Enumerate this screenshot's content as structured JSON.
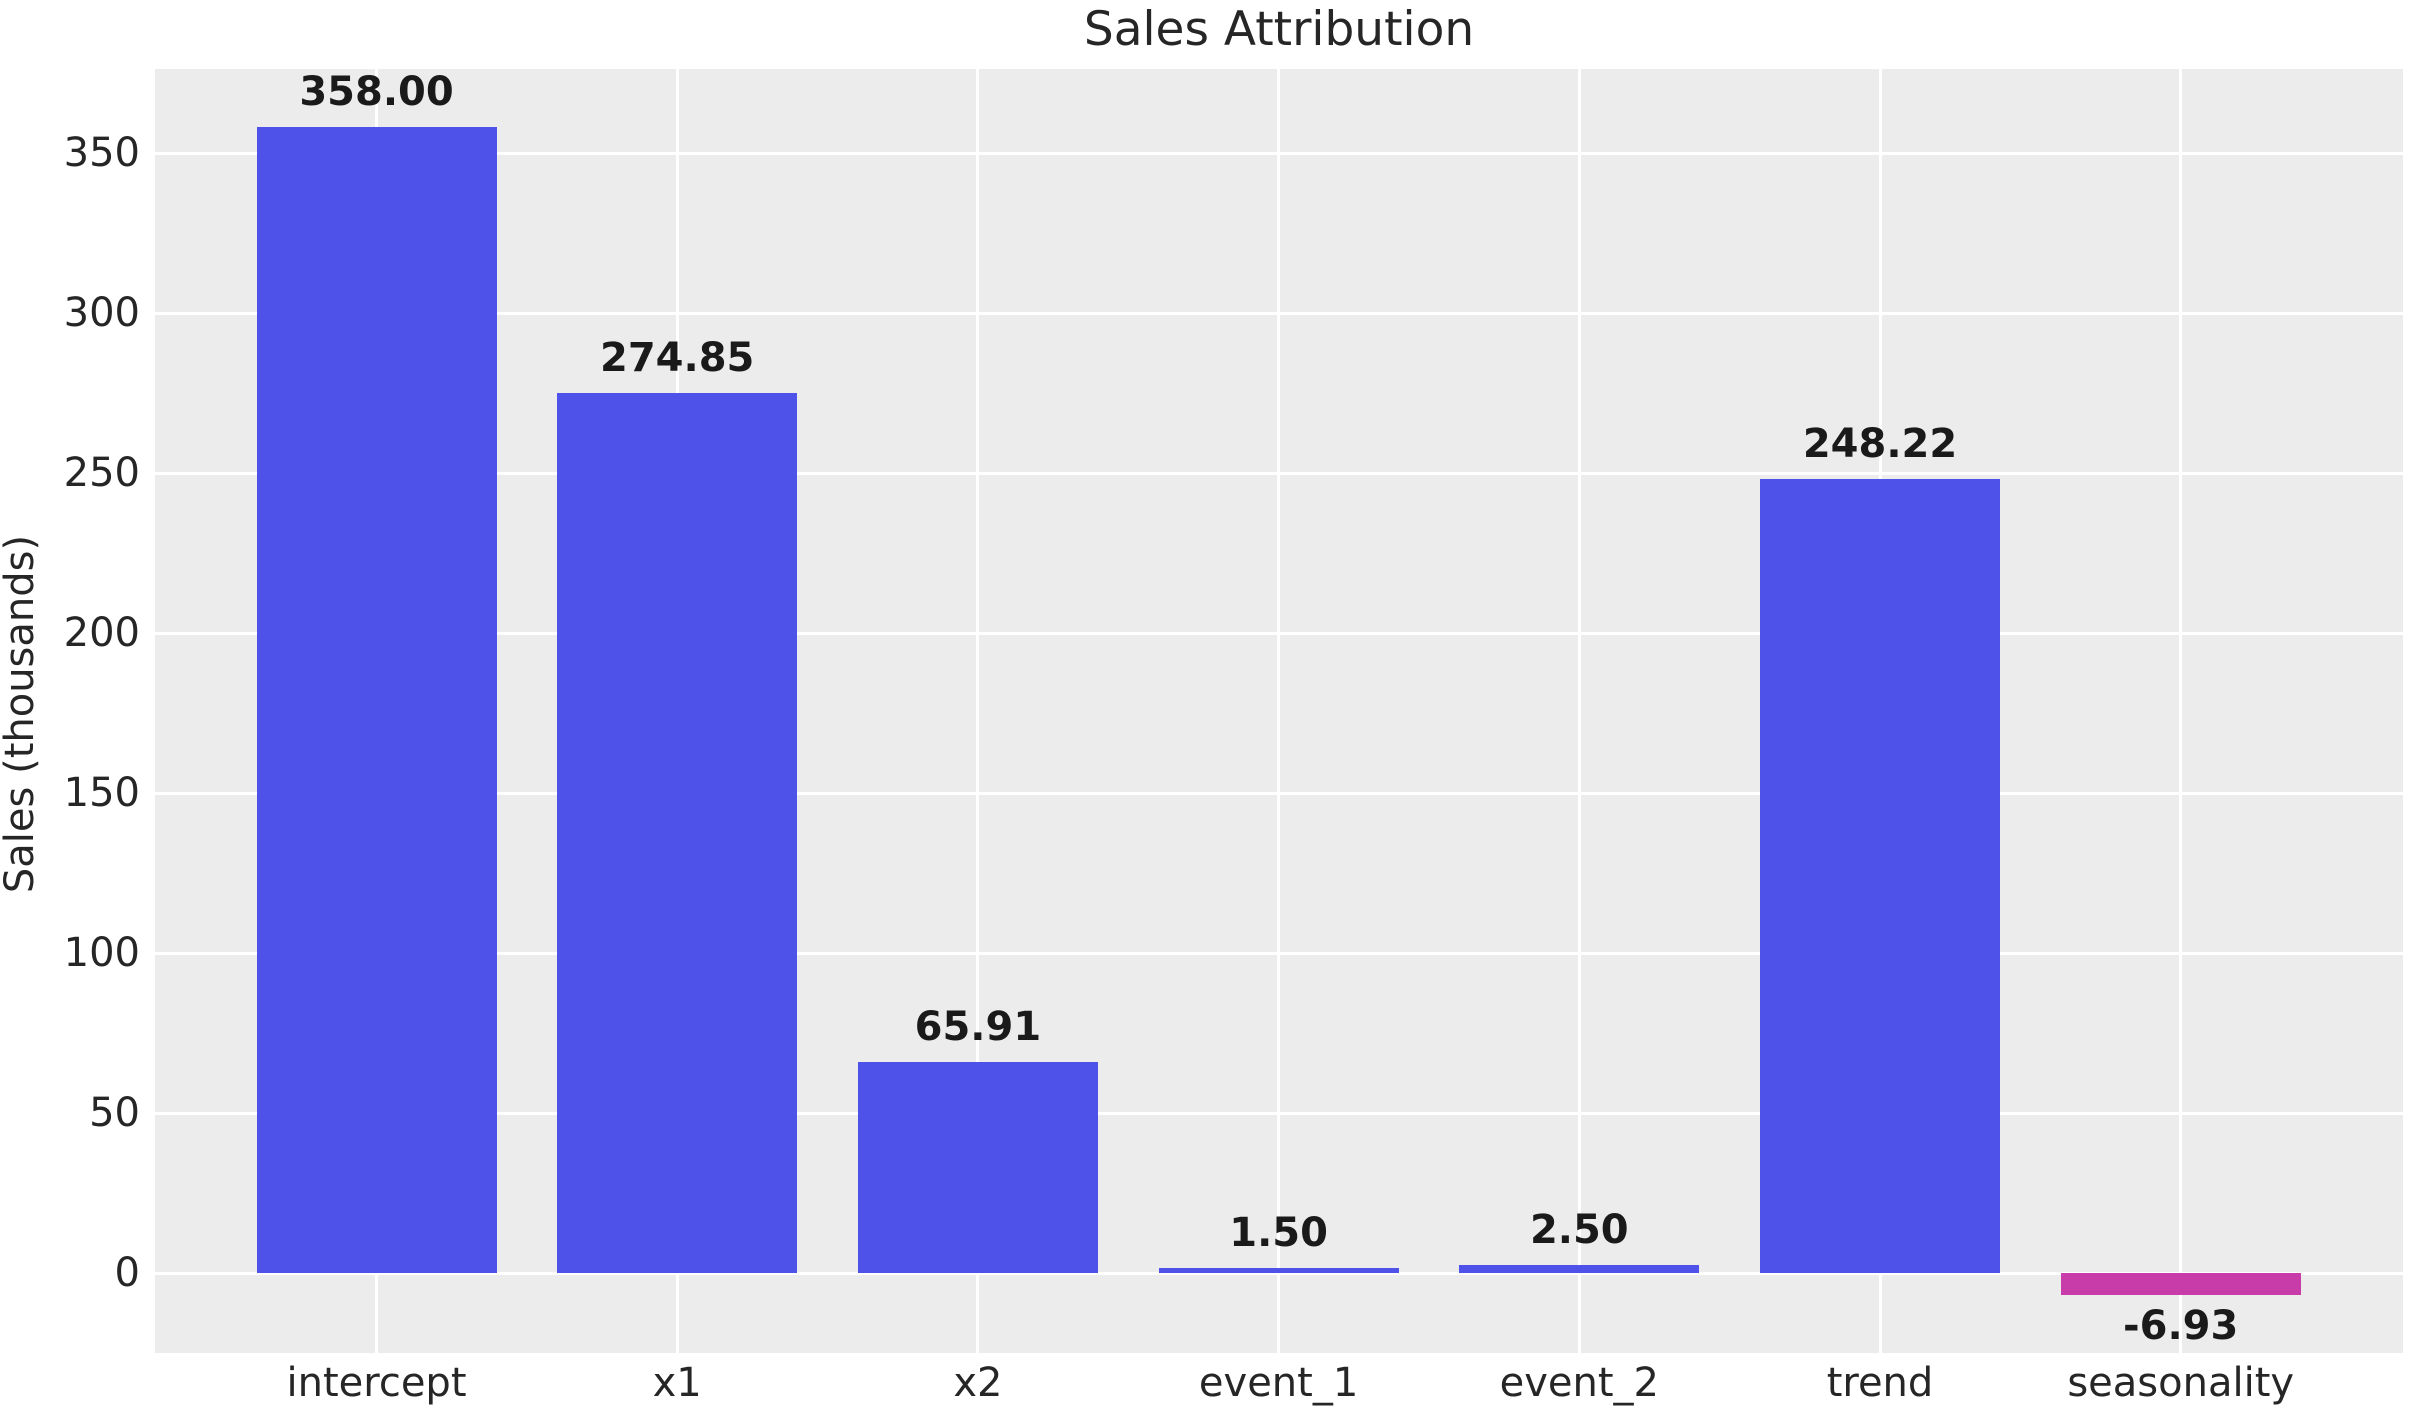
{
  "chart_data": {
    "type": "bar",
    "title": "Sales Attribution",
    "xlabel": "",
    "ylabel": "Sales (thousands)",
    "categories": [
      "intercept",
      "x1",
      "x2",
      "event_1",
      "event_2",
      "trend",
      "seasonality"
    ],
    "values": [
      358.0,
      274.85,
      65.91,
      1.5,
      2.5,
      248.22,
      -6.93
    ],
    "value_labels": [
      "358.00",
      "274.85",
      "65.91",
      "1.50",
      "2.50",
      "248.22",
      "-6.93"
    ],
    "yticks": [
      0,
      50,
      100,
      150,
      200,
      250,
      300,
      350
    ],
    "ylim": [
      -25.2,
      376.3
    ],
    "grid": true,
    "legend_position": "none",
    "colors": {
      "positive_bar": "#4F52E8",
      "negative_bar": "#C83CAA",
      "plot_background": "#ECECEC",
      "gridline": "#FFFFFF",
      "text": "#262626",
      "figure_background": "#FFFFFF"
    }
  }
}
